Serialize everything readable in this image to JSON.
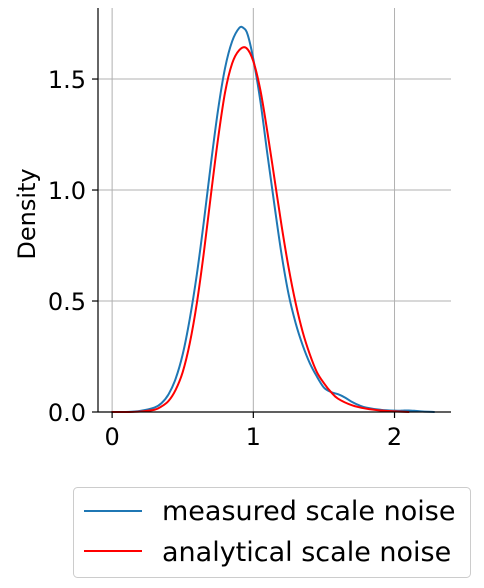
{
  "chart_data": {
    "type": "line",
    "xlabel": "",
    "ylabel": "Density",
    "xlim": [
      -0.1,
      2.4
    ],
    "ylim": [
      0,
      1.82
    ],
    "xticks": [
      0,
      1,
      2
    ],
    "xtick_labels": [
      "0",
      "1",
      "2"
    ],
    "yticks": [
      0,
      0.5,
      1.0,
      1.5
    ],
    "ytick_labels": [
      "0.0",
      "0.5",
      "1.0",
      "1.5"
    ],
    "grid": true,
    "legend_position": "bottom-center",
    "series": [
      {
        "name": "measured scale noise",
        "color": "#1f77b4",
        "points": [
          [
            0.0,
            0.0
          ],
          [
            0.1,
            0.0
          ],
          [
            0.2,
            0.005
          ],
          [
            0.3,
            0.02
          ],
          [
            0.35,
            0.04
          ],
          [
            0.4,
            0.08
          ],
          [
            0.45,
            0.15
          ],
          [
            0.5,
            0.26
          ],
          [
            0.55,
            0.42
          ],
          [
            0.6,
            0.62
          ],
          [
            0.65,
            0.86
          ],
          [
            0.7,
            1.12
          ],
          [
            0.75,
            1.36
          ],
          [
            0.8,
            1.55
          ],
          [
            0.85,
            1.67
          ],
          [
            0.9,
            1.73
          ],
          [
            0.93,
            1.73
          ],
          [
            0.96,
            1.7
          ],
          [
            1.0,
            1.59
          ],
          [
            1.05,
            1.4
          ],
          [
            1.1,
            1.16
          ],
          [
            1.15,
            0.93
          ],
          [
            1.2,
            0.71
          ],
          [
            1.25,
            0.53
          ],
          [
            1.3,
            0.4
          ],
          [
            1.35,
            0.3
          ],
          [
            1.4,
            0.22
          ],
          [
            1.45,
            0.16
          ],
          [
            1.5,
            0.11
          ],
          [
            1.55,
            0.09
          ],
          [
            1.6,
            0.08
          ],
          [
            1.65,
            0.065
          ],
          [
            1.7,
            0.045
          ],
          [
            1.75,
            0.03
          ],
          [
            1.8,
            0.02
          ],
          [
            1.9,
            0.01
          ],
          [
            2.0,
            0.006
          ],
          [
            2.05,
            0.006
          ],
          [
            2.1,
            0.007
          ],
          [
            2.15,
            0.005
          ],
          [
            2.2,
            0.002
          ],
          [
            2.28,
            0.0
          ]
        ]
      },
      {
        "name": "analytical scale noise",
        "color": "#ff0000",
        "points": [
          [
            0.0,
            0.0
          ],
          [
            0.1,
            0.0
          ],
          [
            0.2,
            0.002
          ],
          [
            0.3,
            0.01
          ],
          [
            0.35,
            0.025
          ],
          [
            0.4,
            0.05
          ],
          [
            0.45,
            0.1
          ],
          [
            0.5,
            0.18
          ],
          [
            0.55,
            0.31
          ],
          [
            0.6,
            0.49
          ],
          [
            0.65,
            0.72
          ],
          [
            0.7,
            0.98
          ],
          [
            0.75,
            1.23
          ],
          [
            0.8,
            1.44
          ],
          [
            0.85,
            1.57
          ],
          [
            0.9,
            1.63
          ],
          [
            0.95,
            1.64
          ],
          [
            1.0,
            1.58
          ],
          [
            1.05,
            1.45
          ],
          [
            1.1,
            1.26
          ],
          [
            1.15,
            1.05
          ],
          [
            1.2,
            0.84
          ],
          [
            1.25,
            0.65
          ],
          [
            1.3,
            0.49
          ],
          [
            1.35,
            0.36
          ],
          [
            1.4,
            0.26
          ],
          [
            1.45,
            0.18
          ],
          [
            1.5,
            0.13
          ],
          [
            1.55,
            0.09
          ],
          [
            1.6,
            0.06
          ],
          [
            1.7,
            0.03
          ],
          [
            1.8,
            0.015
          ],
          [
            1.9,
            0.007
          ],
          [
            2.0,
            0.003
          ],
          [
            2.1,
            0.0
          ]
        ]
      }
    ]
  }
}
